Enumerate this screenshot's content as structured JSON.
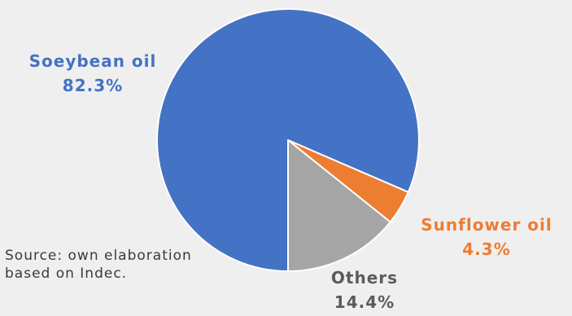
{
  "chart_data": {
    "type": "pie",
    "slices": [
      {
        "label": "Soeybean oil",
        "value": 82.3,
        "value_label": "82.3%",
        "color": "#4472c4"
      },
      {
        "label": "Sunflower oil",
        "value": 4.3,
        "value_label": "4.3%",
        "color": "#ed7d31"
      },
      {
        "label": "Others",
        "value": 14.4,
        "value_label": "14.4%",
        "color": "#a5a5a5"
      }
    ],
    "title": "",
    "legend": "none"
  },
  "source_note": "Source: own elaboration based on Indec."
}
